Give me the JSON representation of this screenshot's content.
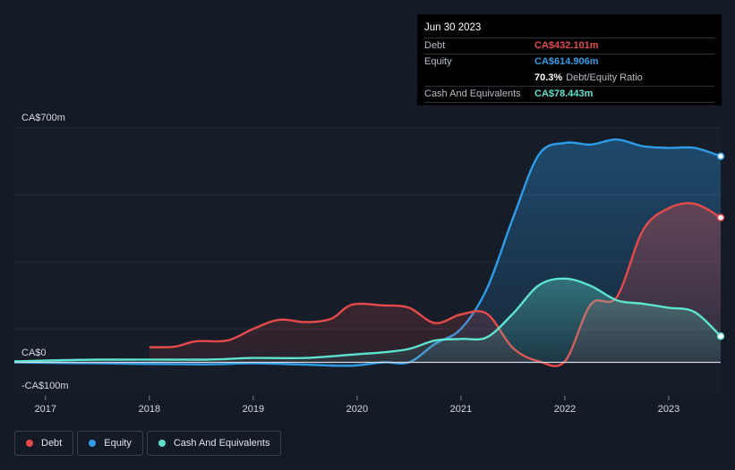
{
  "tooltip": {
    "date": "Jun 30 2023",
    "rows": [
      {
        "label": "Debt",
        "value": "CA$432.101m",
        "color": "#e64a4a"
      },
      {
        "label": "Equity",
        "value": "CA$614.906m",
        "color": "#2e9ce8"
      }
    ],
    "ratio_value": "70.3%",
    "ratio_label": "Debt/Equity Ratio",
    "cash": {
      "label": "Cash And Equivalents",
      "value": "CA$78.443m",
      "color": "#5de3cf"
    }
  },
  "legend": [
    {
      "label": "Debt",
      "color": "#e64a4a"
    },
    {
      "label": "Equity",
      "color": "#2e9ce8"
    },
    {
      "label": "Cash And Equivalents",
      "color": "#5de3cf"
    }
  ],
  "chart_data": {
    "type": "area",
    "x_tick_labels": [
      "2017",
      "2018",
      "2019",
      "2020",
      "2021",
      "2022",
      "2023"
    ],
    "y_tick_labels": [
      "CA$700m",
      "CA$0",
      "-CA$100m"
    ],
    "ylim": [
      -100,
      700
    ],
    "xlim": [
      2016.7,
      2023.5
    ],
    "grid": true,
    "series": [
      {
        "name": "Debt",
        "color": "#e64a4a",
        "points": [
          [
            2018.0,
            45
          ],
          [
            2018.25,
            47
          ],
          [
            2018.45,
            63
          ],
          [
            2018.75,
            65
          ],
          [
            2019.0,
            100
          ],
          [
            2019.25,
            127
          ],
          [
            2019.5,
            120
          ],
          [
            2019.75,
            130
          ],
          [
            2019.95,
            172
          ],
          [
            2020.25,
            170
          ],
          [
            2020.5,
            163
          ],
          [
            2020.75,
            117
          ],
          [
            2021.0,
            143
          ],
          [
            2021.25,
            145
          ],
          [
            2021.5,
            43
          ],
          [
            2021.75,
            3
          ],
          [
            2022.0,
            3
          ],
          [
            2022.25,
            173
          ],
          [
            2022.5,
            195
          ],
          [
            2022.75,
            393
          ],
          [
            2023.0,
            460
          ],
          [
            2023.25,
            473
          ],
          [
            2023.5,
            432
          ]
        ]
      },
      {
        "name": "Equity",
        "color": "#2e9ce8",
        "points": [
          [
            2016.7,
            0
          ],
          [
            2017.5,
            -3
          ],
          [
            2018.5,
            -6
          ],
          [
            2019.0,
            -3
          ],
          [
            2019.5,
            -7
          ],
          [
            2019.95,
            -10
          ],
          [
            2020.25,
            0
          ],
          [
            2020.5,
            0
          ],
          [
            2020.75,
            55
          ],
          [
            2021.0,
            100
          ],
          [
            2021.25,
            220
          ],
          [
            2021.5,
            430
          ],
          [
            2021.75,
            620
          ],
          [
            2022.0,
            655
          ],
          [
            2022.25,
            650
          ],
          [
            2022.5,
            665
          ],
          [
            2022.75,
            645
          ],
          [
            2023.0,
            640
          ],
          [
            2023.25,
            640
          ],
          [
            2023.5,
            615
          ]
        ]
      },
      {
        "name": "Cash And Equivalents",
        "color": "#5de3cf",
        "points": [
          [
            2016.7,
            3
          ],
          [
            2017.5,
            8
          ],
          [
            2018.5,
            8
          ],
          [
            2019.0,
            13
          ],
          [
            2019.5,
            13
          ],
          [
            2019.95,
            23
          ],
          [
            2020.25,
            30
          ],
          [
            2020.5,
            40
          ],
          [
            2020.75,
            65
          ],
          [
            2021.0,
            70
          ],
          [
            2021.25,
            75
          ],
          [
            2021.5,
            145
          ],
          [
            2021.75,
            230
          ],
          [
            2022.0,
            250
          ],
          [
            2022.25,
            228
          ],
          [
            2022.5,
            185
          ],
          [
            2022.75,
            175
          ],
          [
            2023.0,
            163
          ],
          [
            2023.25,
            150
          ],
          [
            2023.5,
            78
          ]
        ]
      }
    ]
  }
}
